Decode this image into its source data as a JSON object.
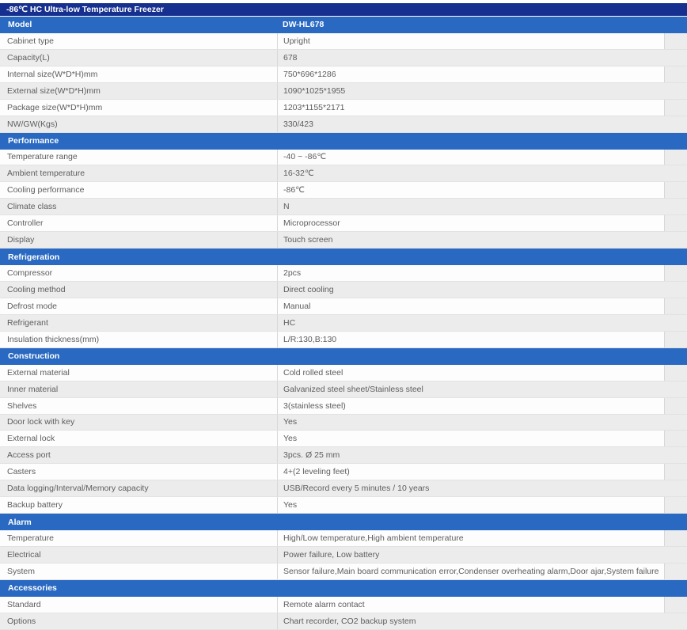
{
  "title": "-86℃ HC Ultra-low Temperature Freezer",
  "colors": {
    "title_bar": "#16308f",
    "section_header": "#2969c1",
    "row_base": "#fdfdfd",
    "row_alt": "#ececec",
    "text": "#5d5d5d"
  },
  "table": {
    "sections": [
      {
        "header": {
          "label": "Model",
          "value": "DW-HL678"
        },
        "rows": [
          {
            "label": "Cabinet type",
            "value": "Upright"
          },
          {
            "label": "Capacity(L)",
            "value": "678"
          },
          {
            "label": "Internal size(W*D*H)mm",
            "value": "750*696*1286"
          },
          {
            "label": "External size(W*D*H)mm",
            "value": "1090*1025*1955"
          },
          {
            "label": "Package size(W*D*H)mm",
            "value": "1203*1155*2171"
          },
          {
            "label": "NW/GW(Kgs)",
            "value": "330/423"
          }
        ]
      },
      {
        "header": {
          "label": "Performance",
          "value": ""
        },
        "rows": [
          {
            "label": "Temperature range",
            "value": "-40 ~ -86℃"
          },
          {
            "label": "Ambient temperature",
            "value": "16-32℃"
          },
          {
            "label": "Cooling performance",
            "value": "-86℃"
          },
          {
            "label": "Climate class",
            "value": "N"
          },
          {
            "label": "Controller",
            "value": "Microprocessor"
          },
          {
            "label": "Display",
            "value": "Touch screen"
          }
        ]
      },
      {
        "header": {
          "label": "Refrigeration",
          "value": ""
        },
        "rows": [
          {
            "label": "Compressor",
            "value": "2pcs"
          },
          {
            "label": "Cooling method",
            "value": "Direct cooling"
          },
          {
            "label": "Defrost mode",
            "value": "Manual"
          },
          {
            "label": "Refrigerant",
            "value": "HC"
          },
          {
            "label": "Insulation thickness(mm)",
            "value": "L/R:130,B:130"
          }
        ]
      },
      {
        "header": {
          "label": "Construction",
          "value": ""
        },
        "rows": [
          {
            "label": "External material",
            "value": "Cold rolled steel"
          },
          {
            "label": "Inner material",
            "value": "Galvanized steel sheet/Stainless steel"
          },
          {
            "label": "Shelves",
            "value": "3(stainless steel)"
          },
          {
            "label": "Door lock with key",
            "value": "Yes"
          },
          {
            "label": "External lock",
            "value": "Yes"
          },
          {
            "label": "Access port",
            "value": "3pcs. Ø 25 mm"
          },
          {
            "label": "Casters",
            "value": "4+(2 leveling feet)"
          },
          {
            "label": "Data logging/Interval/Memory capacity",
            "value": "USB/Record every 5 minutes / 10 years"
          },
          {
            "label": "Backup battery",
            "value": "Yes"
          }
        ]
      },
      {
        "header": {
          "label": "Alarm",
          "value": ""
        },
        "rows": [
          {
            "label": "Temperature",
            "value": "High/Low temperature,High ambient temperature"
          },
          {
            "label": "Electrical",
            "value": "Power failure, Low battery"
          },
          {
            "label": "System",
            "value": "Sensor failure,Main board communication error,Condenser overheating alarm,Door ajar,System failure"
          }
        ]
      },
      {
        "header": {
          "label": "Accessories",
          "value": ""
        },
        "rows": [
          {
            "label": "Standard",
            "value": "Remote alarm contact"
          },
          {
            "label": "Options",
            "value": "Chart recorder, CO2 backup system"
          }
        ]
      }
    ]
  }
}
